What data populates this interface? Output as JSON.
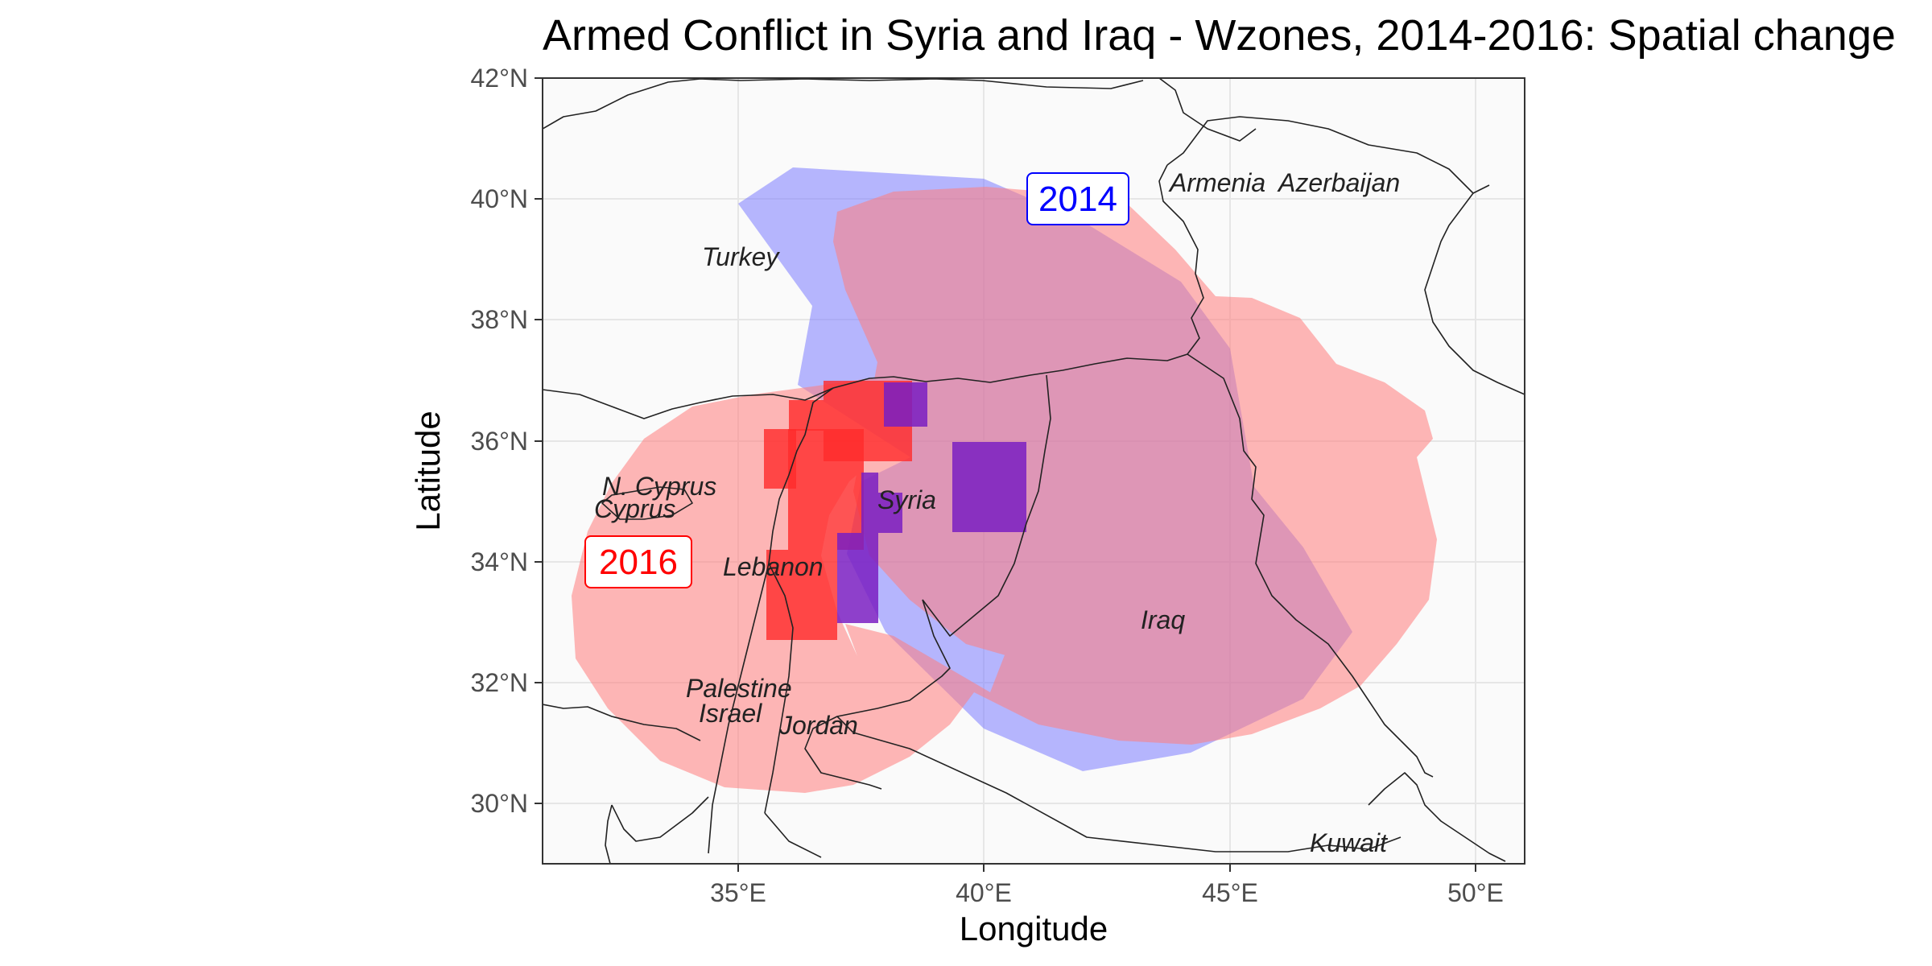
{
  "title": "Armed Conflict in Syria and Iraq - Wzones, 2014-2016: Spatial change",
  "xlabel": "Longitude",
  "ylabel": "Latitude",
  "x_ticks": [
    "35°E",
    "40°E",
    "45°E",
    "50°E"
  ],
  "y_ticks": [
    "30°N",
    "32°N",
    "34°N",
    "36°N",
    "38°N",
    "40°N",
    "42°N"
  ],
  "colors": {
    "panel": "#fafafa",
    "zone_2014": "#7b7bff",
    "zone_2016": "#ff7b7b",
    "cells_2014": "#7a1fc2",
    "cells_2016": "#ff2a2a",
    "label_2014": "#0000ff",
    "label_2016": "#ff0000"
  },
  "zone_labels": {
    "zone_2014": "2014",
    "zone_2016": "2016"
  },
  "country_labels": {
    "turkey": "Turkey",
    "armenia": "Armenia",
    "azerbaijan": "Azerbaijan",
    "n_cyprus": "N. Cyprus",
    "cyprus": "Cyprus",
    "syria": "Syria",
    "lebanon": "Lebanon",
    "palestine": "Palestine",
    "israel": "Israel",
    "jordan": "Jordan",
    "iraq": "Iraq",
    "kuwait": "Kuwait"
  },
  "chart_data": {
    "type": "map",
    "title": "Armed Conflict in Syria and Iraq - Wzones, 2014-2016: Spatial change",
    "xlabel": "Longitude",
    "ylabel": "Latitude",
    "xlim": [
      31,
      51
    ],
    "ylim": [
      29,
      42
    ],
    "grid": true,
    "zones": [
      {
        "name": "2014",
        "polygon": [
          [
            35,
            39.8
          ],
          [
            36.1,
            40.5
          ],
          [
            40,
            40.3
          ],
          [
            42,
            39.6
          ],
          [
            44,
            38.6
          ],
          [
            45,
            37.5
          ],
          [
            45.5,
            35.2
          ],
          [
            46.5,
            34.2
          ],
          [
            47.5,
            32.8
          ],
          [
            46.5,
            31.7
          ],
          [
            44.2,
            30.8
          ],
          [
            42,
            30.5
          ],
          [
            40,
            31.2
          ],
          [
            38,
            32.8
          ],
          [
            37.2,
            34.1
          ],
          [
            37.5,
            35.3
          ],
          [
            38.5,
            35.7
          ],
          [
            36.2,
            36.9
          ],
          [
            36.5,
            38.2
          ],
          [
            35,
            39.8
          ]
        ]
      },
      {
        "name": "2016",
        "polygon": [
          [
            32.3,
            33.5
          ],
          [
            33.2,
            35.2
          ],
          [
            35.2,
            36.6
          ],
          [
            37.5,
            36.9
          ],
          [
            38.7,
            35.9
          ],
          [
            37.6,
            35
          ],
          [
            37,
            33.5
          ],
          [
            37.5,
            32
          ],
          [
            39.5,
            31.9
          ],
          [
            40.5,
            31.3
          ],
          [
            41,
            31
          ],
          [
            43,
            30.9
          ],
          [
            45,
            31.1
          ],
          [
            46.6,
            31.8
          ],
          [
            47.3,
            32.8
          ],
          [
            48,
            34.6
          ],
          [
            47.7,
            35.8
          ],
          [
            47.2,
            36.2
          ],
          [
            46.5,
            37
          ],
          [
            45.7,
            37.7
          ],
          [
            44.5,
            38.2
          ],
          [
            43.4,
            39.1
          ],
          [
            42.2,
            40
          ],
          [
            40.9,
            40.2
          ],
          [
            39.5,
            40.2
          ],
          [
            38.5,
            39.9
          ],
          [
            37.1,
            38.6
          ],
          [
            37,
            37.3
          ],
          [
            35.1,
            36.3
          ],
          [
            33.3,
            35.5
          ],
          [
            32.2,
            34.3
          ],
          [
            31.8,
            33.3
          ],
          [
            32.3,
            32.1
          ],
          [
            33.8,
            30.7
          ],
          [
            35.2,
            30.3
          ],
          [
            37.5,
            30.9
          ],
          [
            38.5,
            32.1
          ],
          [
            37,
            33.3
          ],
          [
            34,
            30.6
          ],
          [
            32.3,
            33.5
          ]
        ]
      }
    ],
    "cells": [
      {
        "year": "2016",
        "lon": [
          36.2,
          36.9
        ],
        "lat": [
          36.2,
          36.7
        ]
      },
      {
        "year": "2016",
        "lon": [
          36.9,
          38.3
        ],
        "lat": [
          35.6,
          37
        ]
      },
      {
        "year": "2016",
        "lon": [
          35.6,
          36.2
        ],
        "lat": [
          35.2,
          36.2
        ]
      },
      {
        "year": "2016",
        "lon": [
          36.1,
          37.1
        ],
        "lat": [
          33.2,
          36
        ]
      },
      {
        "year": "2016",
        "lon": [
          35.6,
          37.5
        ],
        "lat": [
          32.7,
          34.7
        ]
      },
      {
        "year": "2014",
        "lon": [
          37.5,
          37.9
        ],
        "lat": [
          33,
          35.4
        ]
      },
      {
        "year": "2014",
        "lon": [
          37.9,
          38.3
        ],
        "lat": [
          34.5,
          35.2
        ]
      },
      {
        "year": "2014",
        "lon": [
          39.4,
          40.9
        ],
        "lat": [
          34.5,
          36
        ]
      },
      {
        "year": "2014",
        "lon": [
          38.3,
          38.7
        ],
        "lat": [
          36.2,
          37
        ]
      }
    ]
  }
}
